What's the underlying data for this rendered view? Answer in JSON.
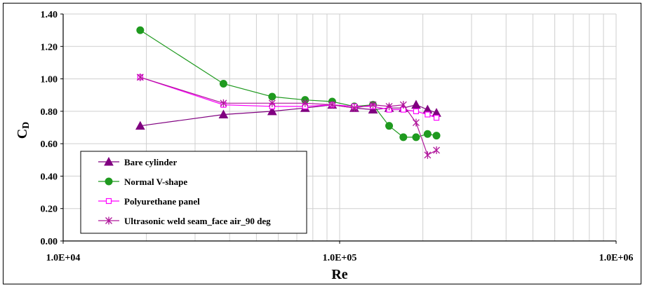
{
  "chart_data": {
    "type": "line",
    "xlabel": "Re",
    "ylabel_main": "C",
    "ylabel_sub": "D",
    "x_scale": "log",
    "xlim": [
      10000,
      1000000
    ],
    "ylim": [
      0,
      1.4
    ],
    "x_tick_labels": [
      "1.0E+04",
      "1.0E+05",
      "1.0E+06"
    ],
    "y_tick_labels": [
      "0.00",
      "0.20",
      "0.40",
      "0.60",
      "0.80",
      "1.00",
      "1.20",
      "1.40"
    ],
    "grid": true,
    "legend_position": "bottom-left",
    "series": [
      {
        "name": "Bare cylinder",
        "color": "#800080",
        "marker": "triangle",
        "x": [
          19000,
          38000,
          57000,
          75000,
          94000,
          113000,
          132000,
          151000,
          170000,
          189000,
          208000,
          224000
        ],
        "y": [
          0.71,
          0.78,
          0.8,
          0.82,
          0.84,
          0.82,
          0.81,
          0.82,
          0.82,
          0.84,
          0.81,
          0.79
        ]
      },
      {
        "name": "Normal V-shape",
        "color": "#1f9a1f",
        "marker": "circle",
        "x": [
          19000,
          38000,
          57000,
          75000,
          94000,
          113000,
          132000,
          151000,
          170000,
          189000,
          208000,
          224000
        ],
        "y": [
          1.3,
          0.97,
          0.89,
          0.87,
          0.86,
          0.83,
          0.84,
          0.71,
          0.64,
          0.64,
          0.66,
          0.65
        ]
      },
      {
        "name": "Polyurethane panel",
        "color": "#ff00ff",
        "marker": "square",
        "x": [
          19000,
          38000,
          57000,
          75000,
          94000,
          113000,
          132000,
          151000,
          170000,
          189000,
          208000,
          224000
        ],
        "y": [
          1.01,
          0.84,
          0.83,
          0.83,
          0.84,
          0.83,
          0.83,
          0.81,
          0.81,
          0.8,
          0.78,
          0.76
        ]
      },
      {
        "name": "Ultrasonic weld seam_face air_90 deg",
        "color": "#b0179b",
        "marker": "star",
        "x": [
          19000,
          38000,
          57000,
          75000,
          94000,
          113000,
          132000,
          151000,
          170000,
          189000,
          208000,
          224000
        ],
        "y": [
          1.01,
          0.85,
          0.85,
          0.85,
          0.84,
          0.82,
          0.84,
          0.83,
          0.84,
          0.73,
          0.53,
          0.56
        ]
      }
    ]
  }
}
